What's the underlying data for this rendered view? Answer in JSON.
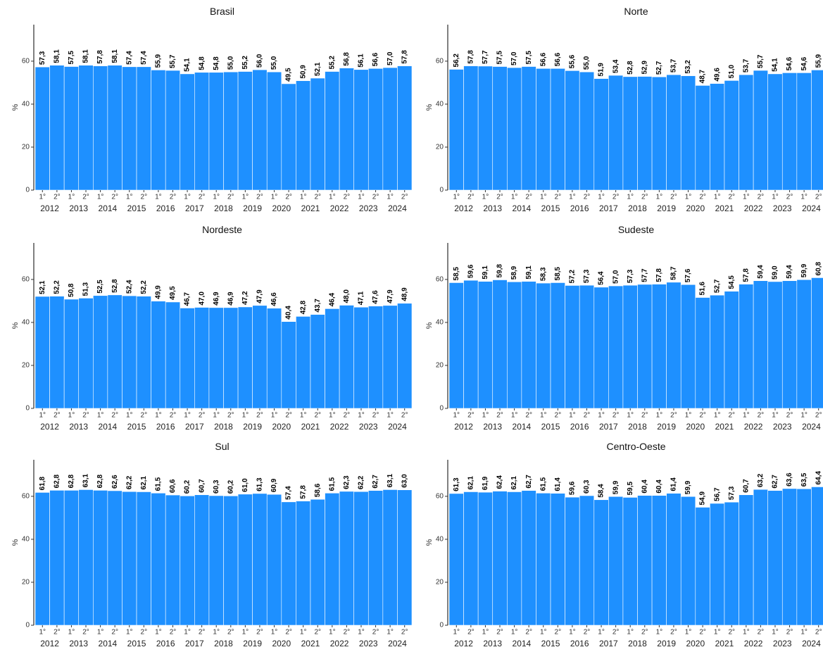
{
  "chart_data": [
    {
      "type": "bar",
      "title": "Brasil",
      "ylabel": "%",
      "color": "#1E90FF",
      "ylim": [
        0,
        77
      ],
      "yticks": [
        0,
        20,
        40,
        60
      ],
      "categories": [
        "1°",
        "2°",
        "1°",
        "2°",
        "1°",
        "2°",
        "1°",
        "2°",
        "1°",
        "2°",
        "1°",
        "2°",
        "1°",
        "2°",
        "1°",
        "2°",
        "1°",
        "2°",
        "1°",
        "2°",
        "1°",
        "2°",
        "1°",
        "2°",
        "1°",
        "2°"
      ],
      "groups": [
        "2012",
        "2013",
        "2014",
        "2015",
        "2016",
        "2017",
        "2018",
        "2019",
        "2020",
        "2021",
        "2022",
        "2023",
        "2024"
      ],
      "values": [
        57.3,
        58.1,
        57.5,
        58.1,
        57.8,
        58.1,
        57.4,
        57.4,
        55.9,
        55.7,
        54.1,
        54.8,
        54.8,
        55.0,
        55.2,
        56.0,
        55.0,
        49.5,
        50.9,
        52.1,
        55.2,
        56.8,
        56.1,
        56.6,
        57.0,
        57.8
      ],
      "value_labels": [
        "57,3",
        "58,1",
        "57,5",
        "58,1",
        "57,8",
        "58,1",
        "57,4",
        "57,4",
        "55,9",
        "55,7",
        "54,1",
        "54,8",
        "54,8",
        "55,0",
        "55,2",
        "56,0",
        "55,0",
        "49,5",
        "50,9",
        "52,1",
        "55,2",
        "56,8",
        "56,1",
        "56,6",
        "57,0",
        "57,8"
      ]
    },
    {
      "type": "bar",
      "title": "Norte",
      "ylabel": "%",
      "color": "#1E90FF",
      "ylim": [
        0,
        77
      ],
      "yticks": [
        0,
        20,
        40,
        60
      ],
      "categories": [
        "1°",
        "2°",
        "1°",
        "2°",
        "1°",
        "2°",
        "1°",
        "2°",
        "1°",
        "2°",
        "1°",
        "2°",
        "1°",
        "2°",
        "1°",
        "2°",
        "1°",
        "2°",
        "1°",
        "2°",
        "1°",
        "2°",
        "1°",
        "2°",
        "1°",
        "2°"
      ],
      "groups": [
        "2012",
        "2013",
        "2014",
        "2015",
        "2016",
        "2017",
        "2018",
        "2019",
        "2020",
        "2021",
        "2022",
        "2023",
        "2024"
      ],
      "values": [
        56.2,
        57.8,
        57.7,
        57.5,
        57.0,
        57.5,
        56.6,
        56.6,
        55.6,
        55.0,
        51.9,
        53.4,
        52.8,
        52.9,
        52.7,
        53.7,
        53.2,
        48.7,
        49.6,
        51.0,
        53.7,
        55.7,
        54.1,
        54.6,
        54.6,
        55.9
      ],
      "value_labels": [
        "56,2",
        "57,8",
        "57,7",
        "57,5",
        "57,0",
        "57,5",
        "56,6",
        "56,6",
        "55,6",
        "55,0",
        "51,9",
        "53,4",
        "52,8",
        "52,9",
        "52,7",
        "53,7",
        "53,2",
        "48,7",
        "49,6",
        "51,0",
        "53,7",
        "55,7",
        "54,1",
        "54,6",
        "54,6",
        "55,9"
      ]
    },
    {
      "type": "bar",
      "title": "Nordeste",
      "ylabel": "%",
      "color": "#1E90FF",
      "ylim": [
        0,
        77
      ],
      "yticks": [
        0,
        20,
        40,
        60
      ],
      "categories": [
        "1°",
        "2°",
        "1°",
        "2°",
        "1°",
        "2°",
        "1°",
        "2°",
        "1°",
        "2°",
        "1°",
        "2°",
        "1°",
        "2°",
        "1°",
        "2°",
        "1°",
        "2°",
        "1°",
        "2°",
        "1°",
        "2°",
        "1°",
        "2°",
        "1°",
        "2°"
      ],
      "groups": [
        "2012",
        "2013",
        "2014",
        "2015",
        "2016",
        "2017",
        "2018",
        "2019",
        "2020",
        "2021",
        "2022",
        "2023",
        "2024"
      ],
      "values": [
        52.1,
        52.2,
        50.8,
        51.3,
        52.5,
        52.8,
        52.4,
        52.2,
        49.9,
        49.5,
        46.7,
        47.0,
        46.9,
        46.9,
        47.2,
        47.9,
        46.6,
        40.4,
        42.8,
        43.7,
        46.4,
        48.0,
        47.1,
        47.6,
        47.9,
        48.9
      ],
      "value_labels": [
        "52,1",
        "52,2",
        "50,8",
        "51,3",
        "52,5",
        "52,8",
        "52,4",
        "52,2",
        "49,9",
        "49,5",
        "46,7",
        "47,0",
        "46,9",
        "46,9",
        "47,2",
        "47,9",
        "46,6",
        "40,4",
        "42,8",
        "43,7",
        "46,4",
        "48,0",
        "47,1",
        "47,6",
        "47,9",
        "48,9"
      ]
    },
    {
      "type": "bar",
      "title": "Sudeste",
      "ylabel": "%",
      "color": "#1E90FF",
      "ylim": [
        0,
        77
      ],
      "yticks": [
        0,
        20,
        40,
        60
      ],
      "categories": [
        "1°",
        "2°",
        "1°",
        "2°",
        "1°",
        "2°",
        "1°",
        "2°",
        "1°",
        "2°",
        "1°",
        "2°",
        "1°",
        "2°",
        "1°",
        "2°",
        "1°",
        "2°",
        "1°",
        "2°",
        "1°",
        "2°",
        "1°",
        "2°",
        "1°",
        "2°"
      ],
      "groups": [
        "2012",
        "2013",
        "2014",
        "2015",
        "2016",
        "2017",
        "2018",
        "2019",
        "2020",
        "2021",
        "2022",
        "2023",
        "2024"
      ],
      "values": [
        58.5,
        59.6,
        59.1,
        59.8,
        58.9,
        59.1,
        58.3,
        58.5,
        57.2,
        57.3,
        56.4,
        57.0,
        57.3,
        57.7,
        57.8,
        58.7,
        57.6,
        51.6,
        52.7,
        54.5,
        57.8,
        59.4,
        59.0,
        59.4,
        59.9,
        60.8
      ],
      "value_labels": [
        "58,5",
        "59,6",
        "59,1",
        "59,8",
        "58,9",
        "59,1",
        "58,3",
        "58,5",
        "57,2",
        "57,3",
        "56,4",
        "57,0",
        "57,3",
        "57,7",
        "57,8",
        "58,7",
        "57,6",
        "51,6",
        "52,7",
        "54,5",
        "57,8",
        "59,4",
        "59,0",
        "59,4",
        "59,9",
        "60,8"
      ]
    },
    {
      "type": "bar",
      "title": "Sul",
      "ylabel": "%",
      "color": "#1E90FF",
      "ylim": [
        0,
        77
      ],
      "yticks": [
        0,
        20,
        40,
        60
      ],
      "categories": [
        "1°",
        "2°",
        "1°",
        "2°",
        "1°",
        "2°",
        "1°",
        "2°",
        "1°",
        "2°",
        "1°",
        "2°",
        "1°",
        "2°",
        "1°",
        "2°",
        "1°",
        "2°",
        "1°",
        "2°",
        "1°",
        "2°",
        "1°",
        "2°",
        "1°",
        "2°"
      ],
      "groups": [
        "2012",
        "2013",
        "2014",
        "2015",
        "2016",
        "2017",
        "2018",
        "2019",
        "2020",
        "2021",
        "2022",
        "2023",
        "2024"
      ],
      "values": [
        61.8,
        62.8,
        62.8,
        63.1,
        62.8,
        62.6,
        62.2,
        62.1,
        61.5,
        60.6,
        60.2,
        60.7,
        60.3,
        60.2,
        61.0,
        61.3,
        60.9,
        57.4,
        57.8,
        58.6,
        61.5,
        62.3,
        62.2,
        62.7,
        63.1,
        63.0
      ],
      "value_labels": [
        "61,8",
        "62,8",
        "62,8",
        "63,1",
        "62,8",
        "62,6",
        "62,2",
        "62,1",
        "61,5",
        "60,6",
        "60,2",
        "60,7",
        "60,3",
        "60,2",
        "61,0",
        "61,3",
        "60,9",
        "57,4",
        "57,8",
        "58,6",
        "61,5",
        "62,3",
        "62,2",
        "62,7",
        "63,1",
        "63,0"
      ]
    },
    {
      "type": "bar",
      "title": "Centro-Oeste",
      "ylabel": "%",
      "color": "#1E90FF",
      "ylim": [
        0,
        77
      ],
      "yticks": [
        0,
        20,
        40,
        60
      ],
      "categories": [
        "1°",
        "2°",
        "1°",
        "2°",
        "1°",
        "2°",
        "1°",
        "2°",
        "1°",
        "2°",
        "1°",
        "2°",
        "1°",
        "2°",
        "1°",
        "2°",
        "1°",
        "2°",
        "1°",
        "2°",
        "1°",
        "2°",
        "1°",
        "2°",
        "1°",
        "2°"
      ],
      "groups": [
        "2012",
        "2013",
        "2014",
        "2015",
        "2016",
        "2017",
        "2018",
        "2019",
        "2020",
        "2021",
        "2022",
        "2023",
        "2024"
      ],
      "values": [
        61.3,
        62.1,
        61.9,
        62.4,
        62.1,
        62.7,
        61.5,
        61.4,
        59.6,
        60.3,
        58.4,
        59.9,
        59.5,
        60.4,
        60.4,
        61.4,
        59.9,
        54.9,
        56.7,
        57.3,
        60.7,
        63.2,
        62.7,
        63.6,
        63.5,
        64.4
      ],
      "value_labels": [
        "61,3",
        "62,1",
        "61,9",
        "62,4",
        "62,1",
        "62,7",
        "61,5",
        "61,4",
        "59,6",
        "60,3",
        "58,4",
        "59,9",
        "59,5",
        "60,4",
        "60,4",
        "61,4",
        "59,9",
        "54,9",
        "56,7",
        "57,3",
        "60,7",
        "63,2",
        "62,7",
        "63,6",
        "63,5",
        "64,4"
      ]
    }
  ]
}
